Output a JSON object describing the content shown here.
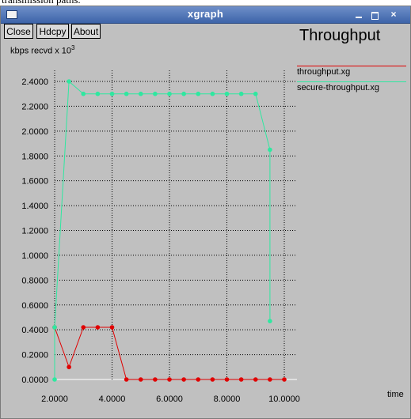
{
  "caption_fragment": "transmission paths.",
  "window": {
    "title": "xgraph",
    "controls": {
      "minimize": "_",
      "maximize": "□",
      "close": "×"
    }
  },
  "toolbar": {
    "close_label": "Close",
    "hdcpy_label": "Hdcpy",
    "about_label": "About"
  },
  "colors": {
    "background": "#c0c0c0",
    "titlebar": "#4a6fb5",
    "throughput": "#e00000",
    "secure_throughput": "#2ee8a0",
    "grid": "#000000",
    "zero_line": "#ffffff"
  },
  "chart_data": {
    "type": "line",
    "title": "Throughput",
    "ylabel_prefix": "kbps recvd x 10",
    "ylabel_exponent": "3",
    "xlabel": "time",
    "xlim": [
      2.0,
      10.0
    ],
    "ylim": [
      0.0,
      2.4
    ],
    "grid": true,
    "legend_position": "right",
    "x_ticks": [
      "2.0000",
      "4.0000",
      "6.0000",
      "8.0000",
      "10.0000"
    ],
    "y_ticks": [
      "0.0000",
      "0.2000",
      "0.4000",
      "0.6000",
      "0.8000",
      "1.0000",
      "1.2000",
      "1.4000",
      "1.6000",
      "1.8000",
      "2.0000",
      "2.2000",
      "2.4000"
    ],
    "series": [
      {
        "name": "throughput.xg",
        "color": "#e00000",
        "x": [
          2.0,
          2.5,
          3.0,
          3.5,
          4.0,
          4.5,
          5.0,
          5.5,
          6.0,
          6.5,
          7.0,
          7.5,
          8.0,
          8.5,
          9.0,
          9.5,
          10.0
        ],
        "y": [
          0.42,
          0.1,
          0.42,
          0.42,
          0.42,
          0.0,
          0.0,
          0.0,
          0.0,
          0.0,
          0.0,
          0.0,
          0.0,
          0.0,
          0.0,
          0.0,
          0.0
        ]
      },
      {
        "name": "secure-throughput.xg",
        "color": "#2ee8a0",
        "x": [
          2.0,
          2.0,
          2.5,
          3.0,
          3.5,
          4.0,
          4.5,
          5.0,
          5.5,
          6.0,
          6.5,
          7.0,
          7.5,
          8.0,
          8.5,
          9.0,
          9.5,
          9.5
        ],
        "y": [
          0.0,
          0.42,
          2.4,
          2.3,
          2.3,
          2.3,
          2.3,
          2.3,
          2.3,
          2.3,
          2.3,
          2.3,
          2.3,
          2.3,
          2.3,
          2.3,
          1.85,
          0.47
        ]
      }
    ]
  }
}
